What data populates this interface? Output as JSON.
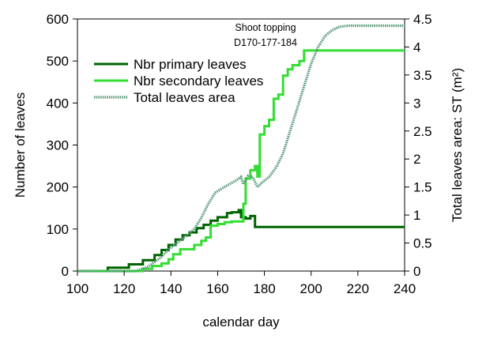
{
  "chart_data": {
    "type": "line",
    "title": "",
    "xlabel": "calendar day",
    "ylabel": "Number of leaves",
    "y2label": "Total leaves area: ST  (m²)",
    "xlim": [
      100,
      240
    ],
    "ylim": [
      0,
      600
    ],
    "y2lim": [
      0,
      4.5
    ],
    "xticks": [
      100,
      120,
      140,
      160,
      180,
      200,
      220,
      240
    ],
    "yticks": [
      0,
      100,
      200,
      300,
      400,
      500,
      600
    ],
    "y2ticks": [
      0,
      0.5,
      1,
      1.5,
      2,
      2.5,
      3,
      3.5,
      4,
      4.5
    ],
    "grid": false,
    "legend_position": "upper-left",
    "annotation": {
      "line1": "Shoot topping",
      "line2": "D170-177-184"
    },
    "series": [
      {
        "name": "Nbr primary leaves",
        "axis": "left",
        "color": "#006400",
        "style": "step",
        "points": [
          [
            100,
            0
          ],
          [
            113,
            0
          ],
          [
            113,
            8
          ],
          [
            122,
            8
          ],
          [
            122,
            16
          ],
          [
            128,
            16
          ],
          [
            128,
            26
          ],
          [
            133,
            26
          ],
          [
            133,
            38
          ],
          [
            136,
            38
          ],
          [
            136,
            50
          ],
          [
            139,
            50
          ],
          [
            139,
            62
          ],
          [
            142,
            62
          ],
          [
            142,
            75
          ],
          [
            145,
            75
          ],
          [
            145,
            85
          ],
          [
            148,
            85
          ],
          [
            148,
            92
          ],
          [
            151,
            92
          ],
          [
            151,
            102
          ],
          [
            154,
            102
          ],
          [
            154,
            110
          ],
          [
            157,
            110
          ],
          [
            157,
            120
          ],
          [
            160,
            120
          ],
          [
            160,
            128
          ],
          [
            164,
            128
          ],
          [
            164,
            138
          ],
          [
            166,
            138
          ],
          [
            166,
            140
          ],
          [
            169,
            140
          ],
          [
            169,
            145
          ],
          [
            170,
            145
          ],
          [
            170,
            128
          ],
          [
            172,
            128
          ],
          [
            172,
            125
          ],
          [
            174,
            125
          ],
          [
            174,
            131
          ],
          [
            176,
            131
          ],
          [
            176,
            105
          ],
          [
            240,
            105
          ]
        ]
      },
      {
        "name": "Nbr secondary leaves",
        "axis": "left",
        "color": "#33dd33",
        "style": "step",
        "points": [
          [
            100,
            0
          ],
          [
            128,
            0
          ],
          [
            128,
            5
          ],
          [
            132,
            5
          ],
          [
            132,
            12
          ],
          [
            136,
            12
          ],
          [
            136,
            18
          ],
          [
            139,
            18
          ],
          [
            139,
            28
          ],
          [
            141,
            28
          ],
          [
            141,
            40
          ],
          [
            144,
            40
          ],
          [
            144,
            52
          ],
          [
            150,
            52
          ],
          [
            150,
            62
          ],
          [
            153,
            62
          ],
          [
            153,
            72
          ],
          [
            155,
            72
          ],
          [
            155,
            80
          ],
          [
            157,
            80
          ],
          [
            157,
            108
          ],
          [
            160,
            108
          ],
          [
            160,
            112
          ],
          [
            163,
            112
          ],
          [
            163,
            116
          ],
          [
            166,
            116
          ],
          [
            166,
            118
          ],
          [
            171,
            118
          ],
          [
            171,
            160
          ],
          [
            172,
            160
          ],
          [
            172,
            220
          ],
          [
            174,
            220
          ],
          [
            174,
            240
          ],
          [
            176,
            240
          ],
          [
            176,
            250
          ],
          [
            177,
            250
          ],
          [
            177,
            225
          ],
          [
            178,
            225
          ],
          [
            178,
            325
          ],
          [
            180,
            325
          ],
          [
            180,
            345
          ],
          [
            182,
            345
          ],
          [
            182,
            360
          ],
          [
            184,
            360
          ],
          [
            184,
            410
          ],
          [
            186,
            410
          ],
          [
            186,
            420
          ],
          [
            188,
            420
          ],
          [
            188,
            465
          ],
          [
            190,
            465
          ],
          [
            190,
            480
          ],
          [
            192,
            480
          ],
          [
            192,
            490
          ],
          [
            195,
            490
          ],
          [
            195,
            500
          ],
          [
            197,
            500
          ],
          [
            197,
            525
          ],
          [
            240,
            525
          ]
        ]
      },
      {
        "name": "Total leaves area",
        "axis": "right",
        "color": "#5a9a7a",
        "style": "dotted",
        "points": [
          [
            100,
            0
          ],
          [
            125,
            0
          ],
          [
            130,
            0.07
          ],
          [
            135,
            0.22
          ],
          [
            140,
            0.42
          ],
          [
            145,
            0.58
          ],
          [
            150,
            0.75
          ],
          [
            153,
            0.95
          ],
          [
            156,
            1.2
          ],
          [
            159,
            1.4
          ],
          [
            162,
            1.48
          ],
          [
            165,
            1.55
          ],
          [
            168,
            1.62
          ],
          [
            170,
            1.68
          ],
          [
            171,
            1.55
          ],
          [
            173,
            1.7
          ],
          [
            175,
            1.68
          ],
          [
            177,
            1.5
          ],
          [
            179,
            1.58
          ],
          [
            182,
            1.68
          ],
          [
            185,
            1.85
          ],
          [
            188,
            2.1
          ],
          [
            191,
            2.5
          ],
          [
            194,
            2.9
          ],
          [
            197,
            3.3
          ],
          [
            200,
            3.7
          ],
          [
            203,
            4.0
          ],
          [
            206,
            4.2
          ],
          [
            209,
            4.3
          ],
          [
            212,
            4.36
          ],
          [
            216,
            4.38
          ],
          [
            240,
            4.38
          ]
        ]
      }
    ]
  }
}
